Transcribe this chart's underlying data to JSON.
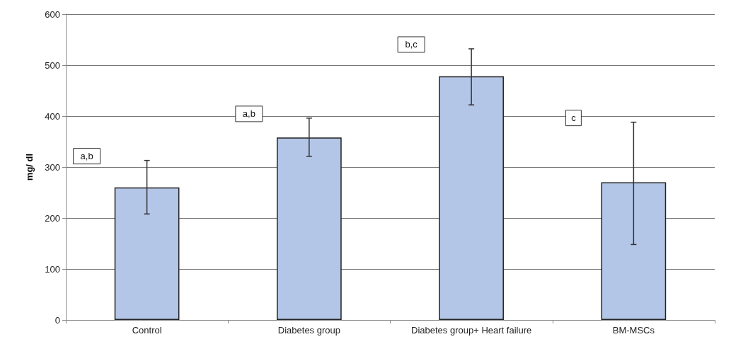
{
  "chart_data": {
    "type": "bar",
    "ylabel": "mg/ dl",
    "categories": [
      "Control",
      "Diabetes group",
      "Diabetes group+ Heart failure",
      "BM-MSCs"
    ],
    "values": [
      260,
      358,
      478,
      270
    ],
    "errors": [
      [
        208,
        313
      ],
      [
        321,
        396
      ],
      [
        422,
        532
      ],
      [
        148,
        388
      ]
    ],
    "color": "#b4c6e7",
    "ylim": [
      0,
      600
    ],
    "yticks": [
      0,
      100,
      200,
      300,
      400,
      500,
      600
    ],
    "grid": "y",
    "annotations": [
      "a,b",
      "a,b",
      "b,c",
      "c"
    ]
  }
}
